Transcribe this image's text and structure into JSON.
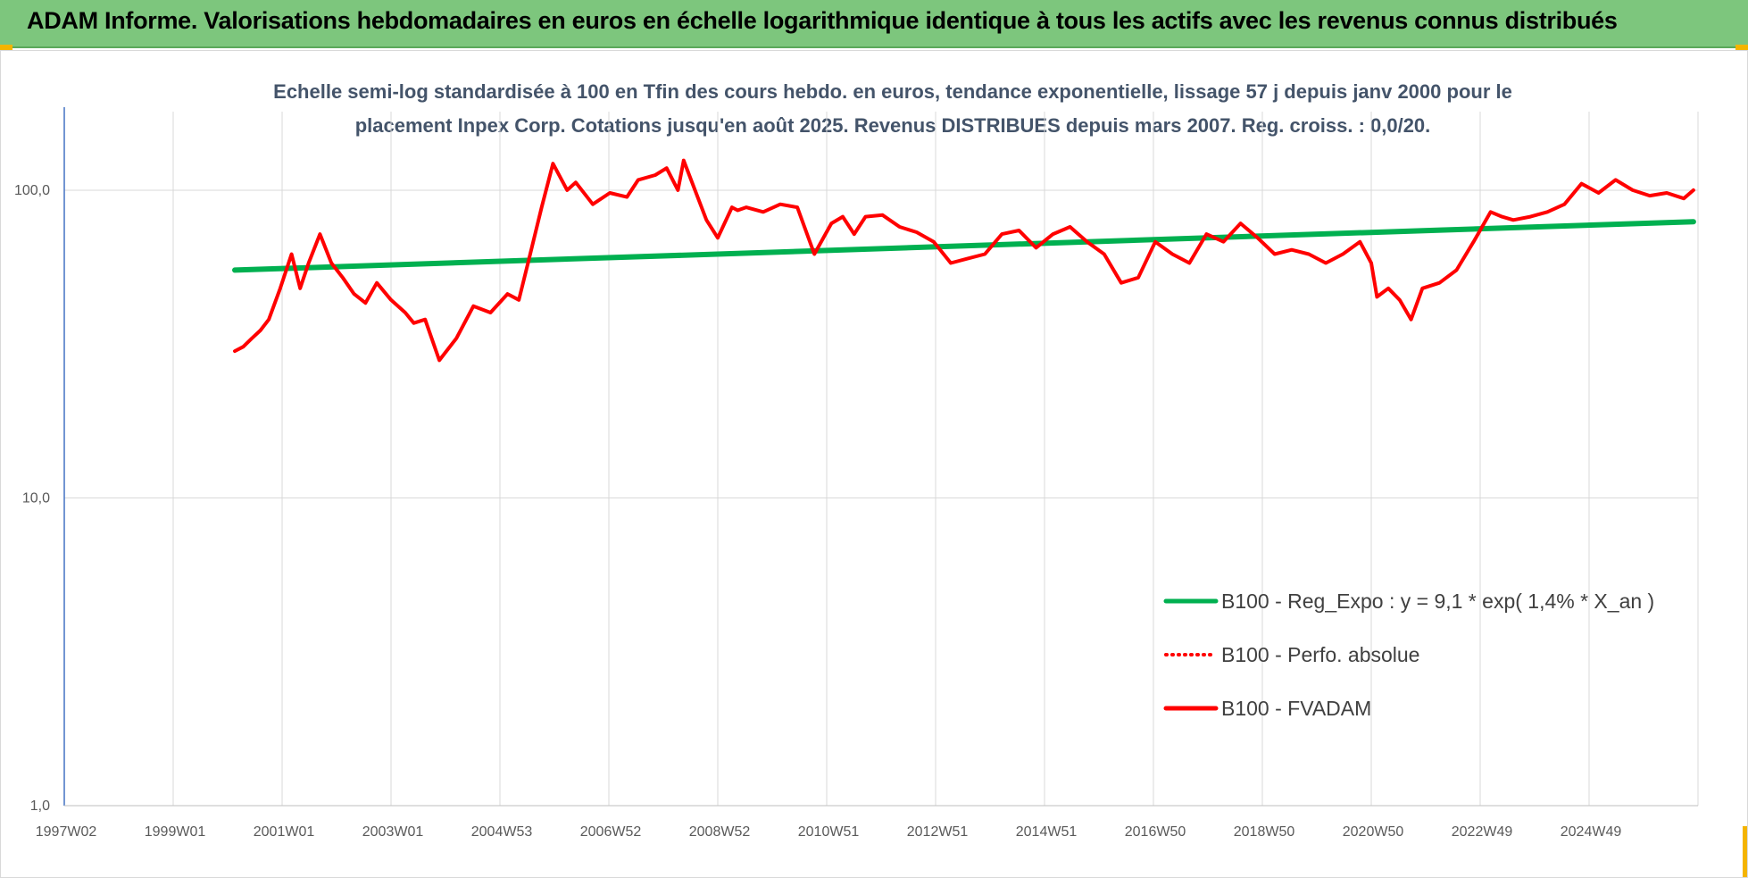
{
  "banner": {
    "title": "ADAM Informe. Valorisations hebdomadaires en euros en échelle logarithmique identique à tous les actifs avec les revenus connus distribués"
  },
  "colors": {
    "banner_bg": "#7dc67d",
    "corner_marks": "#f4b400",
    "trend_line": "#00b050",
    "fvadam_line": "#ff0000",
    "perfo_line": "#ff0000",
    "subtitle": "#44546a",
    "grid": "#d9d9d9"
  },
  "chart_data": {
    "type": "line",
    "title_line1": "Echelle semi-log standardisée à 100 en Tfin des cours hebdo. en euros, tendance exponentielle, lissage 57 j depuis janv 2000 pour le",
    "title_line2": "placement Inpex Corp. Cotations jusqu'en août 2025. Revenus DISTRIBUES depuis mars 2007. Reg. croiss. : 0,0/20.",
    "y_scale": "log",
    "ylim": [
      1,
      180
    ],
    "y_ticks": [
      "1,0",
      "10,0",
      "100,0"
    ],
    "x_range": [
      1997.0,
      2025.75
    ],
    "x_ticks": [
      "1997W02",
      "1999W01",
      "2001W01",
      "2003W01",
      "2004W53",
      "2006W52",
      "2008W52",
      "2010W51",
      "2012W51",
      "2014W51",
      "2016W50",
      "2018W50",
      "2020W50",
      "2022W49",
      "2024W49"
    ],
    "grid": "vertical",
    "legend_position": "right",
    "series": [
      {
        "name": "B100 - Reg_Expo : y = 9,1 * exp( 1,4% *  X_an )",
        "style": "solid",
        "color": "#00b050",
        "x": [
          2000.0,
          2025.67
        ],
        "y": [
          55,
          79
        ]
      },
      {
        "name": "B100 - Perfo. absolue",
        "style": "dotted",
        "color": "#ff0000",
        "x": [],
        "y": []
      },
      {
        "name": "B100 - FVADAM",
        "style": "solid",
        "color": "#ff0000",
        "x": [
          2000.0,
          2000.15,
          2000.3,
          2000.45,
          2000.6,
          2000.8,
          2001.0,
          2001.15,
          2001.3,
          2001.5,
          2001.7,
          2001.9,
          2002.1,
          2002.3,
          2002.5,
          2002.75,
          2003.0,
          2003.15,
          2003.35,
          2003.6,
          2003.9,
          2004.2,
          2004.5,
          2004.8,
          2005.0,
          2005.2,
          2005.4,
          2005.6,
          2005.85,
          2006.0,
          2006.3,
          2006.6,
          2006.9,
          2007.1,
          2007.4,
          2007.6,
          2007.8,
          2007.9,
          2008.1,
          2008.3,
          2008.5,
          2008.75,
          2008.85,
          2009.0,
          2009.3,
          2009.6,
          2009.9,
          2010.2,
          2010.5,
          2010.7,
          2010.9,
          2011.1,
          2011.4,
          2011.7,
          2012.0,
          2012.3,
          2012.6,
          2012.9,
          2013.2,
          2013.5,
          2013.8,
          2014.1,
          2014.4,
          2014.7,
          2015.0,
          2015.3,
          2015.6,
          2015.9,
          2016.2,
          2016.5,
          2016.8,
          2017.1,
          2017.4,
          2017.7,
          2018.0,
          2018.3,
          2018.6,
          2018.9,
          2019.2,
          2019.5,
          2019.8,
          2020.0,
          2020.1,
          2020.3,
          2020.5,
          2020.7,
          2020.9,
          2021.2,
          2021.5,
          2021.8,
          2022.1,
          2022.3,
          2022.5,
          2022.8,
          2023.1,
          2023.4,
          2023.7,
          2024.0,
          2024.3,
          2024.6,
          2024.9,
          2025.2,
          2025.5,
          2025.67
        ],
        "y": [
          30,
          31,
          33,
          35,
          38,
          48,
          62,
          48,
          58,
          72,
          58,
          52,
          46,
          43,
          50,
          44,
          40,
          37,
          38,
          28,
          33,
          42,
          40,
          46,
          44,
          62,
          88,
          122,
          100,
          106,
          90,
          98,
          95,
          108,
          112,
          118,
          100,
          125,
          100,
          80,
          70,
          88,
          86,
          88,
          85,
          90,
          88,
          62,
          78,
          82,
          72,
          82,
          83,
          76,
          73,
          68,
          58,
          60,
          62,
          72,
          74,
          65,
          72,
          76,
          68,
          62,
          50,
          52,
          68,
          62,
          58,
          72,
          68,
          78,
          70,
          62,
          64,
          62,
          58,
          62,
          68,
          58,
          45,
          48,
          44,
          38,
          48,
          50,
          55,
          68,
          85,
          82,
          80,
          82,
          85,
          90,
          105,
          98,
          108,
          100,
          96,
          98,
          94,
          100
        ]
      }
    ]
  }
}
